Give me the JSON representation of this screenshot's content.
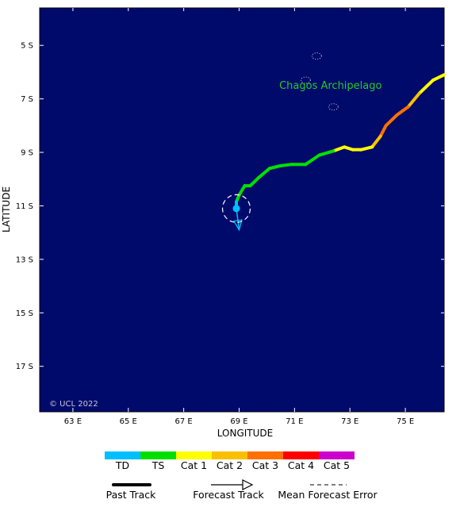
{
  "map": {
    "ocean_color": "#000a6b",
    "x_axis_title": "LONGITUDE",
    "y_axis_title": "LATITUDE",
    "copyright": "© UCL 2022",
    "lon_range": [
      61.8,
      76.4
    ],
    "lat_range": [
      18.7,
      3.6
    ],
    "lon_ticks": [
      {
        "value": 63,
        "label": "63 E"
      },
      {
        "value": 65,
        "label": "65 E"
      },
      {
        "value": 67,
        "label": "67 E"
      },
      {
        "value": 69,
        "label": "69 E"
      },
      {
        "value": 71,
        "label": "71 E"
      },
      {
        "value": 73,
        "label": "73 E"
      },
      {
        "value": 75,
        "label": "75 E"
      }
    ],
    "lat_ticks": [
      {
        "value": 5,
        "label": "5 S"
      },
      {
        "value": 7,
        "label": "7 S"
      },
      {
        "value": 9,
        "label": "9 S"
      },
      {
        "value": 11,
        "label": "11 S"
      },
      {
        "value": 13,
        "label": "13 S"
      },
      {
        "value": 15,
        "label": "15 S"
      },
      {
        "value": 17,
        "label": "17 S"
      }
    ],
    "places": [
      {
        "name": "Chagos Archipelago",
        "lon": 72.3,
        "lat": 6.5
      }
    ],
    "islands": [
      {
        "lon": 71.8,
        "lat": 5.4
      },
      {
        "lon": 71.4,
        "lat": 6.3
      },
      {
        "lon": 72.4,
        "lat": 7.3
      }
    ],
    "past_track": [
      {
        "lon": 76.4,
        "lat": 6.1,
        "cat": "Cat 1"
      },
      {
        "lon": 76.0,
        "lat": 6.3,
        "cat": "Cat 1"
      },
      {
        "lon": 75.5,
        "lat": 6.8,
        "cat": "Cat 1"
      },
      {
        "lon": 75.1,
        "lat": 7.3,
        "cat": "Cat 2"
      },
      {
        "lon": 74.7,
        "lat": 7.6,
        "cat": "Cat 3"
      },
      {
        "lon": 74.3,
        "lat": 8.0,
        "cat": "Cat 3"
      },
      {
        "lon": 74.1,
        "lat": 8.4,
        "cat": "Cat 3"
      },
      {
        "lon": 73.8,
        "lat": 8.8,
        "cat": "Cat 2"
      },
      {
        "lon": 73.4,
        "lat": 8.9,
        "cat": "Cat 1"
      },
      {
        "lon": 73.1,
        "lat": 8.9,
        "cat": "Cat 1"
      },
      {
        "lon": 72.8,
        "lat": 8.8,
        "cat": "Cat 1"
      },
      {
        "lon": 72.4,
        "lat": 8.95,
        "cat": "Cat 1"
      },
      {
        "lon": 71.9,
        "lat": 9.1,
        "cat": "TS"
      },
      {
        "lon": 71.4,
        "lat": 9.45,
        "cat": "TS"
      },
      {
        "lon": 70.9,
        "lat": 9.45,
        "cat": "TS"
      },
      {
        "lon": 70.5,
        "lat": 9.5,
        "cat": "TS"
      },
      {
        "lon": 70.1,
        "lat": 9.6,
        "cat": "TS"
      },
      {
        "lon": 69.7,
        "lat": 9.95,
        "cat": "TS"
      },
      {
        "lon": 69.4,
        "lat": 10.25,
        "cat": "TS"
      },
      {
        "lon": 69.2,
        "lat": 10.25,
        "cat": "TS"
      },
      {
        "lon": 69.0,
        "lat": 10.6,
        "cat": "TS"
      },
      {
        "lon": 68.9,
        "lat": 10.85,
        "cat": "TS"
      },
      {
        "lon": 68.9,
        "lat": 11.1,
        "cat": "TD"
      }
    ],
    "forecast_track": [
      {
        "lon": 68.9,
        "lat": 11.1,
        "cat": "TD"
      },
      {
        "lon": 69.0,
        "lat": 11.9,
        "cat": "TD"
      }
    ],
    "current_position": {
      "lon": 68.9,
      "lat": 11.1
    },
    "error_circle_radius_deg": 0.5
  },
  "legend": {
    "categories": [
      {
        "label": "TD",
        "color": "#00bfff"
      },
      {
        "label": "TS",
        "color": "#00e000"
      },
      {
        "label": "Cat 1",
        "color": "#ffff00"
      },
      {
        "label": "Cat 2",
        "color": "#f8c000"
      },
      {
        "label": "Cat 3",
        "color": "#ff7000"
      },
      {
        "label": "Cat 4",
        "color": "#ff0000"
      },
      {
        "label": "Cat 5",
        "color": "#cc00cc"
      }
    ],
    "past_track_label": "Past Track",
    "forecast_track_label": "Forecast Track",
    "error_label": "Mean Forecast Error"
  }
}
